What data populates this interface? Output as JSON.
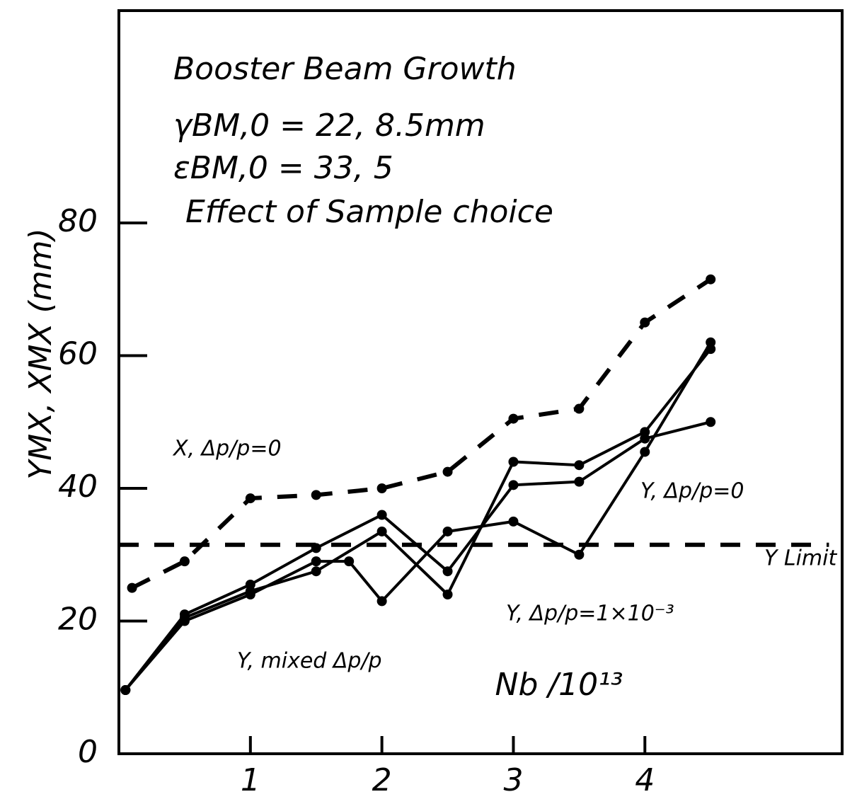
{
  "chart_data": {
    "type": "line",
    "title": "Booster Beam Growth",
    "annotations": [
      "γBM,0 = 22, 8.5mm",
      "εBM,0 = 33, 5",
      "Effect of Sample choice"
    ],
    "xlabel": "Nb /10¹³",
    "ylabel": "YMX, XMX (mm)",
    "xlim": [
      0,
      5.5
    ],
    "ylim": [
      0,
      112
    ],
    "xticks": [
      1,
      2,
      3,
      4
    ],
    "yticks": [
      0,
      20,
      40,
      60,
      80
    ],
    "series": [
      {
        "name": "X, Δp/p=0",
        "color": "#000000",
        "dashed": true,
        "x": [
          0.1,
          0.5,
          1,
          1.5,
          2,
          2.5,
          3,
          3.5,
          4,
          4.5
        ],
        "values": [
          25,
          29,
          38.5,
          39,
          40,
          42.5,
          50.5,
          52,
          65,
          71.5
        ]
      },
      {
        "name": "Y, Δp/p=0",
        "color": "#000000",
        "dashed": false,
        "x": [
          0.05,
          0.5,
          1,
          1.5,
          2,
          2.5,
          3,
          3.5,
          4,
          4.5
        ],
        "values": [
          9.6,
          21,
          25.5,
          31,
          36,
          27.5,
          40.5,
          41,
          47.5,
          50
        ]
      },
      {
        "name": "Y, Δp/p=1×10⁻³",
        "color": "#000000",
        "dashed": false,
        "x": [
          0.05,
          0.5,
          1,
          1.5,
          2,
          2.5,
          3,
          3.5,
          4,
          4.5
        ],
        "values": [
          9.6,
          20.5,
          24.5,
          27.5,
          33.5,
          24,
          44,
          43.5,
          48.5,
          61
        ]
      },
      {
        "name": "Y, mixed Δp/p",
        "color": "#000000",
        "dashed": false,
        "x": [
          0.05,
          0.5,
          1,
          1.5,
          1.75,
          2,
          2.5,
          3,
          3.5,
          4,
          4.5
        ],
        "values": [
          9.6,
          20,
          24,
          29,
          29,
          23,
          33.5,
          35,
          30,
          45.5,
          62
        ]
      },
      {
        "name": "Y Limit",
        "color": "#000000",
        "dashed": true,
        "x": [
          0,
          5.4
        ],
        "values": [
          31.5,
          31.5
        ]
      }
    ]
  }
}
